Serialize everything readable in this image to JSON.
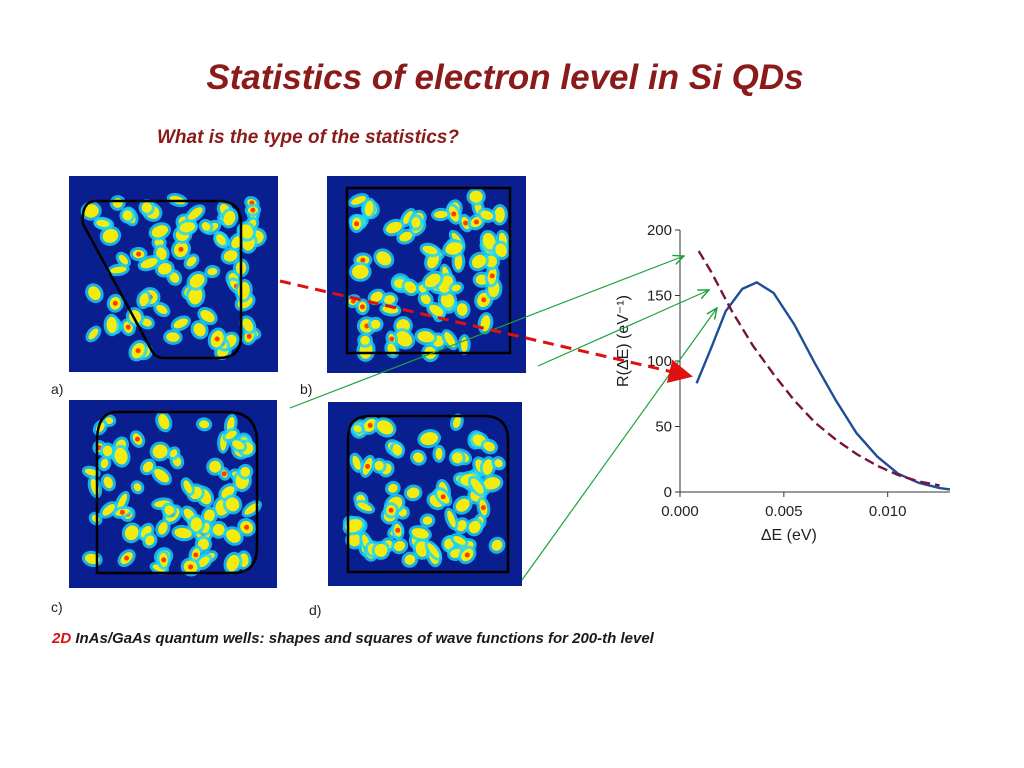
{
  "slide": {
    "title": "Statistics of electron level in Si QDs",
    "question": "What is the type of the statistics?",
    "caption_prefix": "2D",
    "caption_text": " InAs/GaAs quantum wells: shapes and squares of wave functions for  200-th level"
  },
  "panels": [
    {
      "label": "a)",
      "shape": "trapezoid-rounded"
    },
    {
      "label": "b)",
      "shape": "square"
    },
    {
      "label": "c)",
      "shape": "square-rounded"
    },
    {
      "label": "d)",
      "shape": "square-rounded-corners"
    }
  ],
  "colors": {
    "title": "#8b1a1a",
    "panel_bg": "#0a1f8f",
    "blob_core": "#ff3b00",
    "blob_mid": "#ffee00",
    "blob_outer": "#19d6ff",
    "curve_solid": "#1f4e96",
    "curve_dashed": "#7a1240",
    "arrow_green": "#1aa33a",
    "arrow_red": "#e01010"
  },
  "chart_data": {
    "type": "line",
    "xlabel": "ΔE (eV)",
    "ylabel": "R(ΔE) (eV⁻¹)",
    "xlim": [
      0,
      0.013
    ],
    "ylim": [
      0,
      200
    ],
    "xticks": [
      "0.000",
      "0.005",
      "0.010"
    ],
    "xtick_values": [
      0,
      0.005,
      0.01
    ],
    "yticks": [
      "0",
      "50",
      "100",
      "150",
      "200"
    ],
    "ytick_values": [
      0,
      50,
      100,
      150,
      200
    ],
    "series": [
      {
        "style": "solid",
        "x": [
          0.0008,
          0.0015,
          0.0022,
          0.003,
          0.0037,
          0.0045,
          0.0055,
          0.0065,
          0.0075,
          0.0085,
          0.0095,
          0.0105,
          0.0115,
          0.0125,
          0.013
        ],
        "y": [
          83,
          110,
          138,
          155,
          160,
          152,
          128,
          98,
          70,
          45,
          27,
          14,
          7,
          3,
          2
        ]
      },
      {
        "style": "dashed",
        "x": [
          0.0009,
          0.0015,
          0.0025,
          0.0035,
          0.0045,
          0.0055,
          0.0065,
          0.0075,
          0.0085,
          0.0095,
          0.0105,
          0.0115,
          0.0125
        ],
        "y": [
          184,
          168,
          138,
          112,
          90,
          70,
          53,
          40,
          29,
          20,
          13,
          8,
          5
        ]
      }
    ]
  }
}
